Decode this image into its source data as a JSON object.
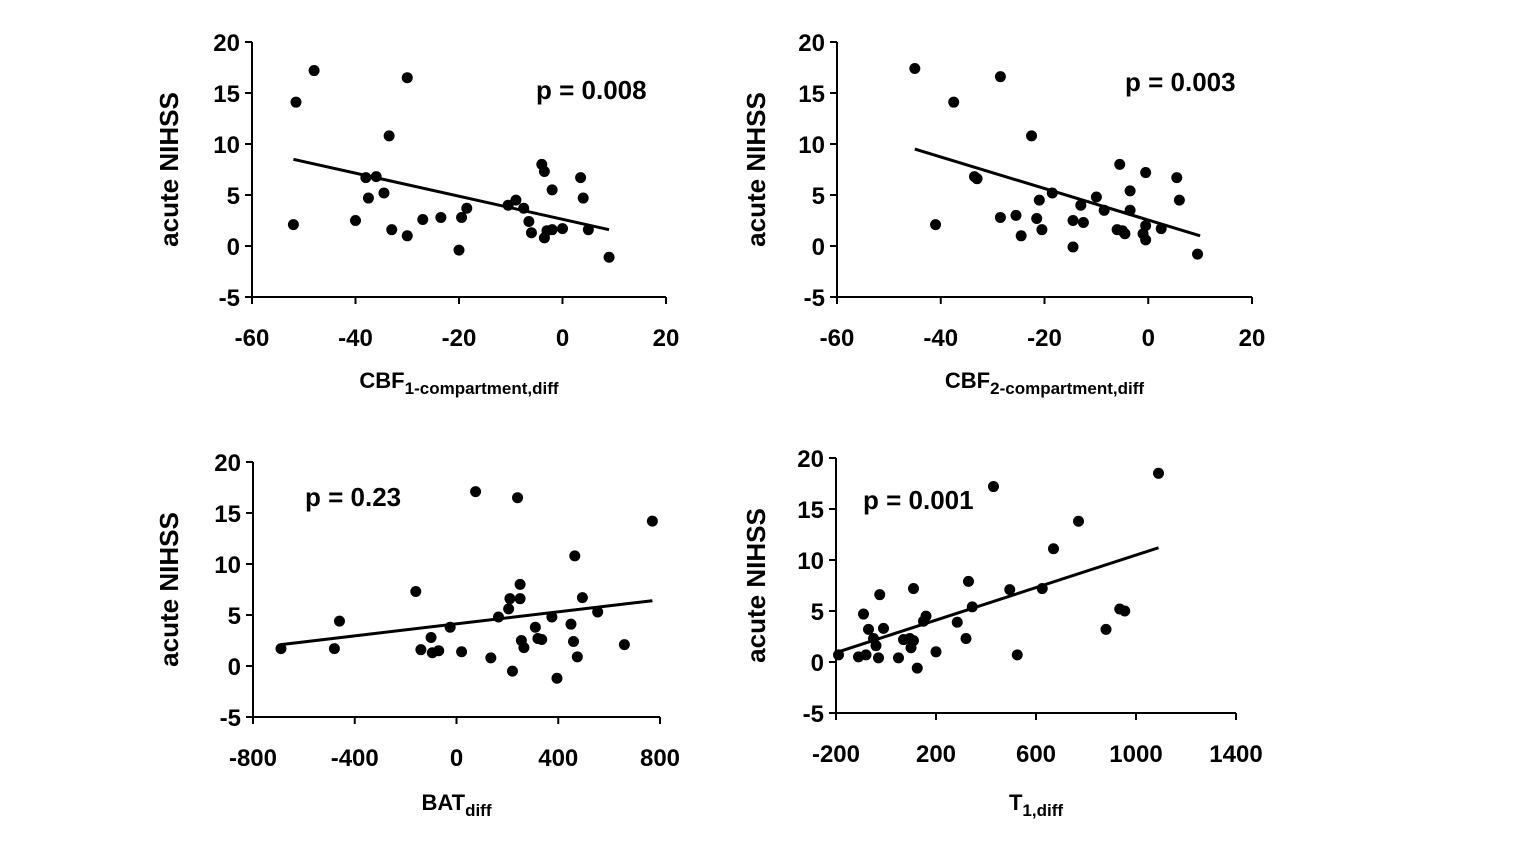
{
  "chart_data": [
    {
      "type": "scatter",
      "name": "cbf1",
      "xlabel_main": "CBF",
      "xlabel_sub": "1-compartment,diff",
      "ylabel": "acute NIHSS",
      "annotation": "p = 0.008",
      "xlim": [
        -60,
        20
      ],
      "ylim": [
        -5,
        20
      ],
      "xticks": [
        "-60",
        "-40",
        "-20",
        "0",
        "20"
      ],
      "yticks": [
        "20",
        "15",
        "10",
        "5",
        "0",
        "-5"
      ],
      "trendline": [
        [
          -52,
          8.5
        ],
        [
          9,
          1.6
        ]
      ],
      "points": [
        [
          -52,
          2.1
        ],
        [
          -51.5,
          14.1
        ],
        [
          -48,
          17.2
        ],
        [
          -40,
          2.5
        ],
        [
          -38,
          6.7
        ],
        [
          -37.5,
          4.7
        ],
        [
          -36,
          6.8
        ],
        [
          -34.5,
          5.2
        ],
        [
          -33.5,
          10.8
        ],
        [
          -33,
          1.6
        ],
        [
          -30,
          1.0
        ],
        [
          -30,
          16.5
        ],
        [
          -27,
          2.6
        ],
        [
          -23.5,
          2.8
        ],
        [
          -20,
          -0.4
        ],
        [
          -19.5,
          2.8
        ],
        [
          -18.5,
          3.7
        ],
        [
          -10.5,
          4.0
        ],
        [
          -9,
          4.5
        ],
        [
          -7.5,
          3.7
        ],
        [
          -6.5,
          2.4
        ],
        [
          -6,
          1.3
        ],
        [
          -4,
          8.0
        ],
        [
          -3.5,
          7.3
        ],
        [
          -3.5,
          0.8
        ],
        [
          -3,
          1.5
        ],
        [
          -2,
          5.5
        ],
        [
          -2,
          1.6
        ],
        [
          0,
          1.7
        ],
        [
          3.5,
          6.7
        ],
        [
          4,
          4.7
        ],
        [
          5,
          1.6
        ],
        [
          9,
          -1.1
        ]
      ]
    },
    {
      "type": "scatter",
      "name": "cbf2",
      "xlabel_main": "CBF",
      "xlabel_sub": "2-compartment,diff",
      "ylabel": "acute NIHSS",
      "annotation": "p = 0.003",
      "xlim": [
        -60,
        20
      ],
      "ylim": [
        -5,
        20
      ],
      "xticks": [
        "-60",
        "-40",
        "-20",
        "0",
        "20"
      ],
      "yticks": [
        "20",
        "15",
        "10",
        "5",
        "0",
        "-5"
      ],
      "trendline": [
        [
          -45,
          9.5
        ],
        [
          10,
          1.0
        ]
      ],
      "points": [
        [
          -45,
          17.4
        ],
        [
          -41,
          2.1
        ],
        [
          -37.5,
          14.1
        ],
        [
          -33.5,
          6.8
        ],
        [
          -33,
          6.6
        ],
        [
          -28.5,
          16.6
        ],
        [
          -28.5,
          2.8
        ],
        [
          -25.5,
          3.0
        ],
        [
          -24.5,
          1.0
        ],
        [
          -22.5,
          10.8
        ],
        [
          -21.5,
          2.7
        ],
        [
          -21,
          4.5
        ],
        [
          -20.5,
          1.6
        ],
        [
          -18.5,
          5.2
        ],
        [
          -14.5,
          2.5
        ],
        [
          -14.5,
          -0.1
        ],
        [
          -13,
          4.0
        ],
        [
          -12.5,
          2.3
        ],
        [
          -10,
          4.8
        ],
        [
          -8.5,
          3.5
        ],
        [
          -6,
          1.6
        ],
        [
          -5.5,
          8.0
        ],
        [
          -5,
          1.5
        ],
        [
          -4.5,
          1.2
        ],
        [
          -3.5,
          5.4
        ],
        [
          -3.5,
          3.5
        ],
        [
          -1,
          1.2
        ],
        [
          -0.5,
          2.0
        ],
        [
          -0.5,
          0.6
        ],
        [
          -0.5,
          7.2
        ],
        [
          2.5,
          1.7
        ],
        [
          5.5,
          6.7
        ],
        [
          6,
          4.5
        ],
        [
          9.5,
          -0.8
        ]
      ]
    },
    {
      "type": "scatter",
      "name": "bat",
      "xlabel_main": "BAT",
      "xlabel_sub": "diff",
      "ylabel": "acute NIHSS",
      "annotation": "p = 0.23",
      "xlim": [
        -800,
        800
      ],
      "ylim": [
        -5,
        20
      ],
      "xticks": [
        "-800",
        "-400",
        "0",
        "400",
        "800"
      ],
      "yticks": [
        "20",
        "15",
        "10",
        "5",
        "0",
        "-5"
      ],
      "trendline": [
        [
          -690,
          2.1
        ],
        [
          770,
          6.4
        ]
      ],
      "points": [
        [
          -690,
          1.7
        ],
        [
          -480,
          1.7
        ],
        [
          -460,
          4.4
        ],
        [
          -160,
          7.3
        ],
        [
          -140,
          1.6
        ],
        [
          -100,
          2.8
        ],
        [
          -95,
          1.3
        ],
        [
          -70,
          1.5
        ],
        [
          -25,
          3.8
        ],
        [
          20,
          1.4
        ],
        [
          75,
          17.1
        ],
        [
          135,
          0.8
        ],
        [
          165,
          4.8
        ],
        [
          205,
          5.6
        ],
        [
          210,
          6.6
        ],
        [
          220,
          -0.5
        ],
        [
          240,
          16.5
        ],
        [
          250,
          6.6
        ],
        [
          250,
          8.0
        ],
        [
          255,
          2.5
        ],
        [
          265,
          1.8
        ],
        [
          310,
          3.8
        ],
        [
          320,
          2.7
        ],
        [
          335,
          2.6
        ],
        [
          375,
          4.8
        ],
        [
          395,
          -1.2
        ],
        [
          450,
          4.1
        ],
        [
          460,
          2.4
        ],
        [
          465,
          10.8
        ],
        [
          475,
          0.9
        ],
        [
          495,
          6.7
        ],
        [
          555,
          5.3
        ],
        [
          660,
          2.1
        ],
        [
          770,
          14.2
        ]
      ]
    },
    {
      "type": "scatter",
      "name": "t1",
      "xlabel_main": "T",
      "xlabel_sub": "1,diff",
      "ylabel": "acute NIHSS",
      "annotation": "p = 0.001",
      "xlim": [
        -200,
        1400
      ],
      "ylim": [
        -5,
        20
      ],
      "xticks": [
        "-200",
        "200",
        "600",
        "1000",
        "1400"
      ],
      "yticks": [
        "20",
        "15",
        "10",
        "5",
        "0",
        "-5"
      ],
      "trendline": [
        [
          -190,
          1.0
        ],
        [
          1090,
          11.2
        ]
      ],
      "points": [
        [
          -190,
          0.7
        ],
        [
          -110,
          0.5
        ],
        [
          -90,
          4.7
        ],
        [
          -80,
          0.7
        ],
        [
          -70,
          3.2
        ],
        [
          -50,
          2.3
        ],
        [
          -40,
          1.6
        ],
        [
          -30,
          0.4
        ],
        [
          -25,
          6.6
        ],
        [
          -10,
          3.3
        ],
        [
          50,
          0.4
        ],
        [
          70,
          2.2
        ],
        [
          95,
          2.3
        ],
        [
          100,
          1.4
        ],
        [
          110,
          7.2
        ],
        [
          110,
          2.1
        ],
        [
          125,
          -0.6
        ],
        [
          150,
          4.0
        ],
        [
          160,
          4.5
        ],
        [
          200,
          1.0
        ],
        [
          285,
          3.9
        ],
        [
          320,
          2.3
        ],
        [
          330,
          7.9
        ],
        [
          345,
          5.4
        ],
        [
          430,
          17.2
        ],
        [
          495,
          7.1
        ],
        [
          525,
          0.7
        ],
        [
          625,
          7.2
        ],
        [
          670,
          11.1
        ],
        [
          770,
          13.8
        ],
        [
          880,
          3.2
        ],
        [
          935,
          5.2
        ],
        [
          955,
          5.0
        ],
        [
          1090,
          18.5
        ]
      ]
    }
  ]
}
